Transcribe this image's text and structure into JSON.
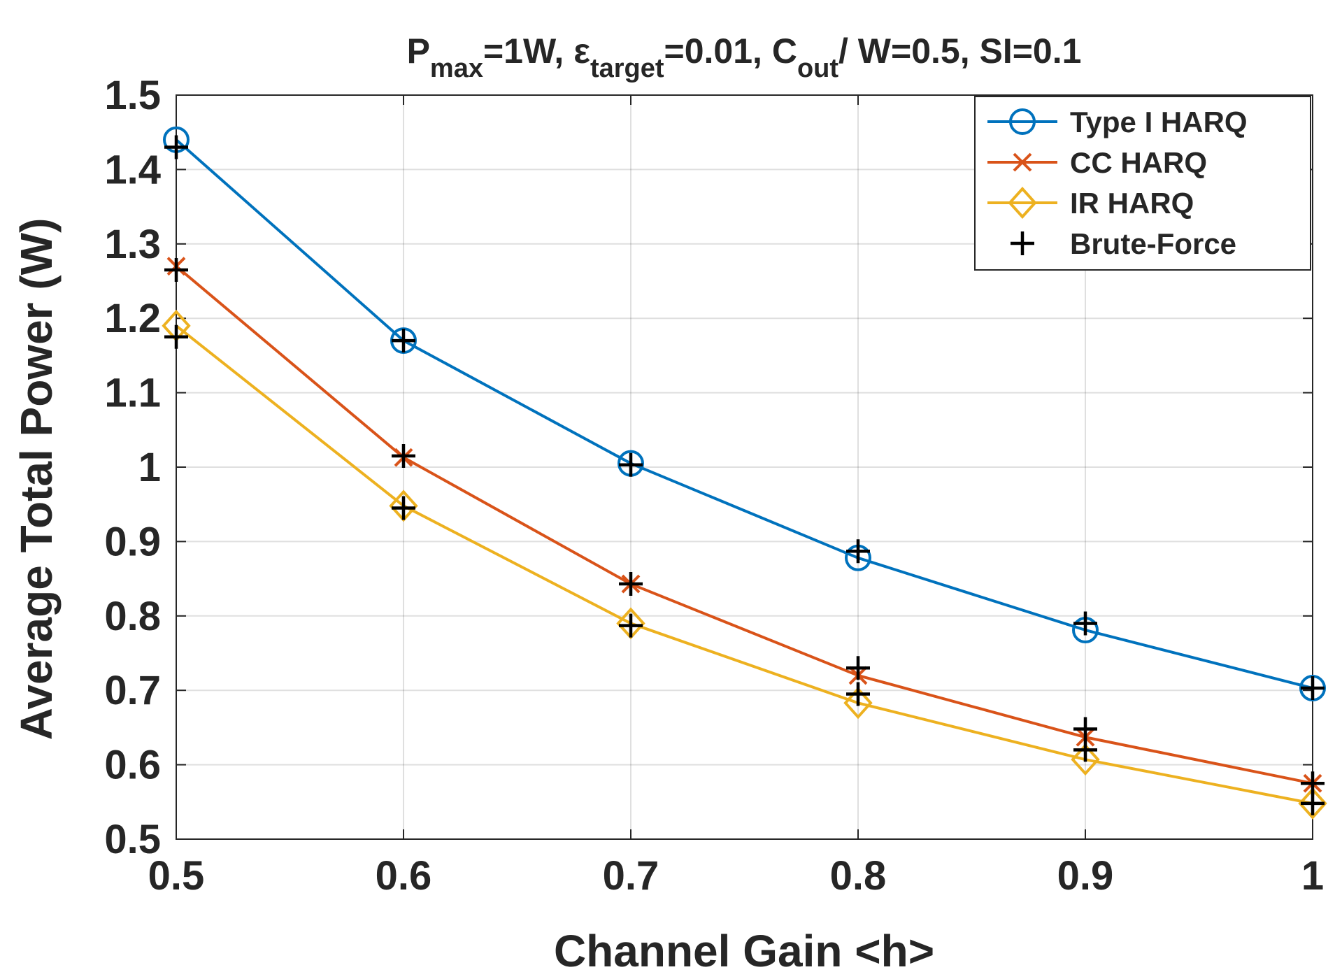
{
  "chart_data": {
    "type": "line",
    "title": {
      "p": "P",
      "max": "max",
      "after_pmax": "=1W, ",
      "eps": "ε",
      "target": "target",
      "after_eps": "=0.01, ",
      "c": "C",
      "out": "out",
      "after_c": "/ W=0.5, SI=0.1"
    },
    "xlabel": "Channel Gain <h>",
    "ylabel": "Average Total Power (W)",
    "xlim": [
      0.5,
      1.0
    ],
    "ylim": [
      0.5,
      1.5
    ],
    "x": [
      0.5,
      0.6,
      0.7,
      0.8,
      0.9,
      1.0
    ],
    "xticks": [
      "0.5",
      "0.6",
      "0.7",
      "0.8",
      "0.9",
      "1"
    ],
    "yticks": [
      "0.5",
      "0.6",
      "0.7",
      "0.8",
      "0.9",
      "1",
      "1.1",
      "1.2",
      "1.3",
      "1.4",
      "1.5"
    ],
    "grid": true,
    "legend_position": "top-right",
    "series": [
      {
        "name": "Type I HARQ",
        "color": "#0072BD",
        "marker": "circle",
        "line": true,
        "values": [
          1.44,
          1.17,
          1.005,
          0.878,
          0.781,
          0.703
        ]
      },
      {
        "name": "CC HARQ",
        "color": "#D95319",
        "marker": "x",
        "line": true,
        "values": [
          1.27,
          1.013,
          0.843,
          0.72,
          0.637,
          0.575
        ]
      },
      {
        "name": "IR HARQ",
        "color": "#EDB120",
        "marker": "diamond",
        "line": true,
        "values": [
          1.19,
          0.948,
          0.79,
          0.683,
          0.607,
          0.548
        ]
      },
      {
        "name": "Brute-Force",
        "color": "#000000",
        "marker": "plus",
        "line": false,
        "points": [
          [
            0.5,
            1.43
          ],
          [
            0.6,
            1.17
          ],
          [
            0.7,
            1.003
          ],
          [
            0.8,
            0.887
          ],
          [
            0.9,
            0.79
          ],
          [
            1.0,
            0.703
          ],
          [
            0.5,
            1.265
          ],
          [
            0.6,
            1.015
          ],
          [
            0.7,
            0.843
          ],
          [
            0.8,
            0.73
          ],
          [
            0.9,
            0.648
          ],
          [
            1.0,
            0.575
          ],
          [
            0.5,
            1.175
          ],
          [
            0.6,
            0.945
          ],
          [
            0.7,
            0.787
          ],
          [
            0.8,
            0.695
          ],
          [
            0.9,
            0.62
          ],
          [
            1.0,
            0.548
          ]
        ]
      }
    ]
  }
}
